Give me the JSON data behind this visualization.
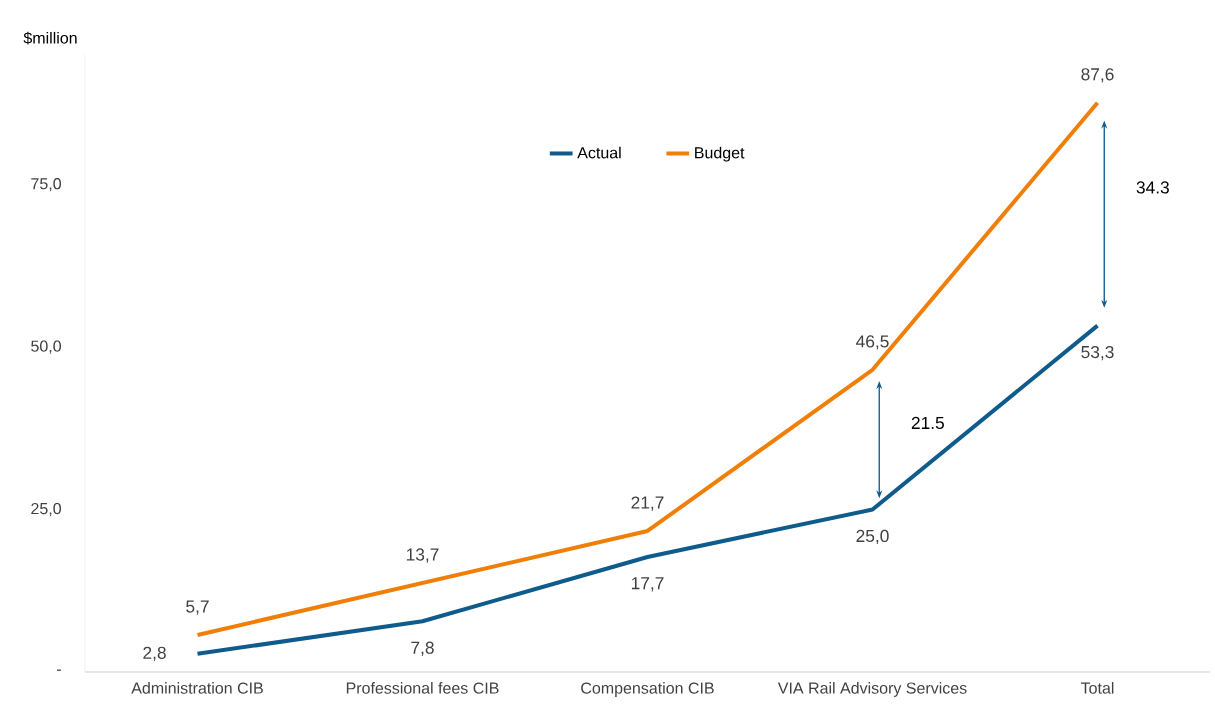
{
  "chart_data": {
    "type": "line",
    "ylabel": "$million",
    "categories": [
      "Administration CIB",
      "Professional fees CIB",
      "Compensation CIB",
      "VIA Rail Advisory Services",
      "Total"
    ],
    "series": [
      {
        "name": "Actual",
        "color": "#0f5b8c",
        "values": [
          2.8,
          7.8,
          17.7,
          25.0,
          53.3
        ],
        "value_labels": [
          "2,8",
          "7,8",
          "17,7",
          "25,0",
          "53,3"
        ]
      },
      {
        "name": "Budget",
        "color": "#f07f09",
        "values": [
          5.7,
          13.7,
          21.7,
          46.5,
          87.6
        ],
        "value_labels": [
          "5,7",
          "13,7",
          "21,7",
          "46,5",
          "87,6"
        ]
      }
    ],
    "ylim": [
      0,
      95
    ],
    "yticks": [
      {
        "value": 0,
        "label": "-"
      },
      {
        "value": 25,
        "label": "25,0"
      },
      {
        "value": 50,
        "label": "50,0"
      },
      {
        "value": 75,
        "label": "75,0"
      }
    ],
    "annotations": [
      "21.5",
      "34.3"
    ],
    "legend": "top",
    "grid": false,
    "marker": "none",
    "line_style": "solid"
  }
}
